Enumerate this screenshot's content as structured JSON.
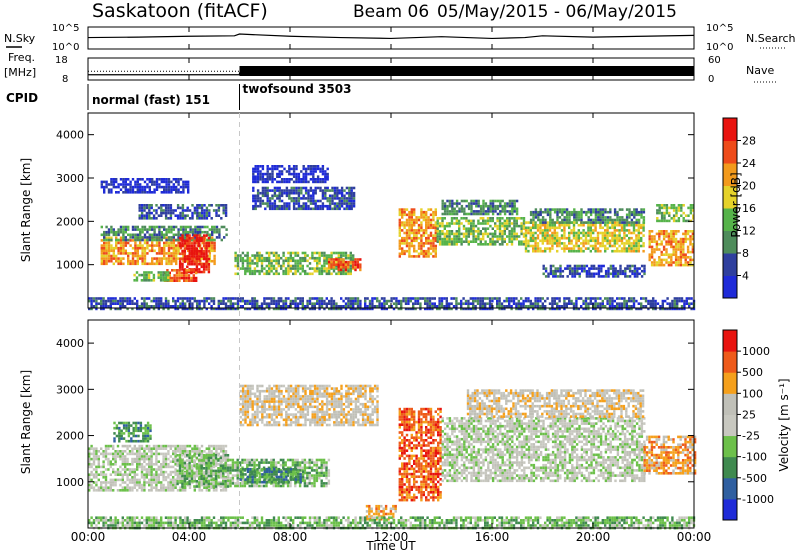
{
  "header": {
    "station": "Saskatoon (fitACF)",
    "beam": "Beam 06",
    "dates": "05/May/2015 - 06/May/2015"
  },
  "chart_data": [
    {
      "type": "line",
      "panel": "noise",
      "left_label": "N.Sky",
      "right_label": "N.Search",
      "left_ticks": [
        "10^5",
        "10^0"
      ],
      "right_ticks": [
        "10^5",
        "10^0"
      ],
      "x_hours": [
        0,
        2,
        4,
        5.8,
        6,
        8,
        10,
        12,
        14,
        16,
        17.3,
        18,
        20,
        22,
        24
      ],
      "values_log": [
        2.6,
        2.7,
        2.9,
        3.0,
        3.4,
        2.9,
        2.6,
        2.4,
        2.8,
        2.4,
        2.6,
        3.0,
        2.7,
        2.9,
        3.1
      ]
    },
    {
      "type": "line",
      "panel": "frequency",
      "left_label_line1": "Freq.",
      "left_label_line2": "[MHz]",
      "right_label": "Nave",
      "left_ticks": [
        "18",
        "8"
      ],
      "right_ticks": [
        "60",
        "0"
      ],
      "freq_x": [
        0,
        6,
        6,
        24
      ],
      "freq_mhz": [
        10.4,
        10.4,
        11.2,
        11.2
      ],
      "nave_x": [
        0,
        6
      ],
      "nave": [
        24,
        24
      ]
    },
    {
      "type": "table",
      "panel": "cpid",
      "label": "CPID",
      "segments": [
        {
          "start_hour": 0,
          "end_hour": 6,
          "name": "normal (fast) 151"
        },
        {
          "start_hour": 6,
          "end_hour": 24,
          "name": "twofsound 3503"
        }
      ]
    },
    {
      "type": "heatmap",
      "panel": "power",
      "ylabel": "Slant Range [km]",
      "yticks": [
        1000,
        2000,
        3000,
        4000
      ],
      "ylim": [
        0,
        4500
      ],
      "colorbar_label": "Power [dB]",
      "colorbar_ticks": [
        4,
        8,
        12,
        16,
        20,
        24,
        28
      ],
      "colors": [
        "#1f2bd8",
        "#2f3f9e",
        "#4e8c5b",
        "#56b34a",
        "#e5d22a",
        "#f39a1c",
        "#ee4b1a",
        "#e8130f"
      ],
      "bands": [
        {
          "x0": 0.5,
          "x1": 5.0,
          "r0": 1000,
          "r1": 1650,
          "level": 5
        },
        {
          "x0": 0.5,
          "x1": 5.5,
          "r0": 1600,
          "r1": 1900,
          "level": 2
        },
        {
          "x0": 0.5,
          "x1": 4.0,
          "r0": 2700,
          "r1": 3000,
          "level": 0
        },
        {
          "x0": 2.0,
          "x1": 5.5,
          "r0": 2100,
          "r1": 2400,
          "level": 1
        },
        {
          "x0": 3.6,
          "x1": 4.8,
          "r0": 800,
          "r1": 1700,
          "level": 7
        },
        {
          "x0": 3.0,
          "x1": 4.3,
          "r0": 600,
          "r1": 900,
          "level": 6
        },
        {
          "x0": 1.8,
          "x1": 3.2,
          "r0": 650,
          "r1": 850,
          "level": 3
        },
        {
          "x0": 5.8,
          "x1": 10.5,
          "r0": 800,
          "r1": 1300,
          "level": 3
        },
        {
          "x0": 9.5,
          "x1": 10.8,
          "r0": 850,
          "r1": 1150,
          "level": 6
        },
        {
          "x0": 6.5,
          "x1": 10.5,
          "r0": 2300,
          "r1": 2800,
          "level": 1
        },
        {
          "x0": 6.5,
          "x1": 9.5,
          "r0": 2900,
          "r1": 3300,
          "level": 0
        },
        {
          "x0": 12.3,
          "x1": 13.8,
          "r0": 1200,
          "r1": 2300,
          "level": 5
        },
        {
          "x0": 13.8,
          "x1": 17.3,
          "r0": 1500,
          "r1": 2100,
          "level": 3
        },
        {
          "x0": 14.0,
          "x1": 17.0,
          "r0": 2200,
          "r1": 2500,
          "level": 2
        },
        {
          "x0": 17.3,
          "x1": 22.0,
          "r0": 1300,
          "r1": 2000,
          "level": 4
        },
        {
          "x0": 17.5,
          "x1": 22.0,
          "r0": 2000,
          "r1": 2300,
          "level": 2
        },
        {
          "x0": 18.0,
          "x1": 22.0,
          "r0": 700,
          "r1": 1000,
          "level": 1
        },
        {
          "x0": 22.2,
          "x1": 24.0,
          "r0": 1000,
          "r1": 1800,
          "level": 5
        },
        {
          "x0": 22.5,
          "x1": 24.0,
          "r0": 2000,
          "r1": 2400,
          "level": 3
        },
        {
          "x0": 0.0,
          "x1": 24.0,
          "r0": 0,
          "r1": 250,
          "level": 1
        }
      ]
    },
    {
      "type": "heatmap",
      "panel": "velocity",
      "ylabel": "Slant Range [km]",
      "yticks": [
        1000,
        2000,
        3000,
        4000
      ],
      "ylim": [
        0,
        4500
      ],
      "colorbar_label": "Velocity [m s⁻¹]",
      "colorbar_ticks": [
        1000,
        500,
        100,
        25,
        -25,
        -100,
        -500,
        -1000
      ],
      "colors": [
        "#1f2bd8",
        "#2f5fa0",
        "#3f8a4f",
        "#6cc04a",
        "#c8c8c0",
        "#c0c0b8",
        "#f5a01c",
        "#ee5a1a",
        "#e8130f"
      ],
      "bands": [
        {
          "x0": 0.0,
          "x1": 5.5,
          "r0": 800,
          "r1": 1800,
          "level": 4
        },
        {
          "x0": 1.0,
          "x1": 2.5,
          "r0": 1900,
          "r1": 2300,
          "level": 2
        },
        {
          "x0": 3.5,
          "x1": 5.5,
          "r0": 900,
          "r1": 1600,
          "level": 3
        },
        {
          "x0": 5.5,
          "x1": 9.5,
          "r0": 900,
          "r1": 1500,
          "level": 3
        },
        {
          "x0": 6.0,
          "x1": 8.5,
          "r0": 1000,
          "r1": 1300,
          "level": 2
        },
        {
          "x0": 6.0,
          "x1": 11.5,
          "r0": 2200,
          "r1": 3100,
          "level": 5
        },
        {
          "x0": 12.3,
          "x1": 14.0,
          "r0": 600,
          "r1": 2600,
          "level": 7
        },
        {
          "x0": 11.0,
          "x1": 12.2,
          "r0": 200,
          "r1": 500,
          "level": 6
        },
        {
          "x0": 14.0,
          "x1": 22.0,
          "r0": 1000,
          "r1": 2400,
          "level": 4
        },
        {
          "x0": 15.0,
          "x1": 22.0,
          "r0": 2400,
          "r1": 3000,
          "level": 5
        },
        {
          "x0": 22.0,
          "x1": 24.0,
          "r0": 1200,
          "r1": 2000,
          "level": 6
        },
        {
          "x0": 0.0,
          "x1": 24.0,
          "r0": 0,
          "r1": 250,
          "level": 3
        }
      ]
    }
  ],
  "xaxis": {
    "label": "Time UT",
    "ticks": [
      "00:00",
      "04:00",
      "08:00",
      "12:00",
      "16:00",
      "20:00",
      "00:00"
    ]
  },
  "colors": {
    "frame": "#000000",
    "mode_change_line": "#c8c8c8"
  }
}
